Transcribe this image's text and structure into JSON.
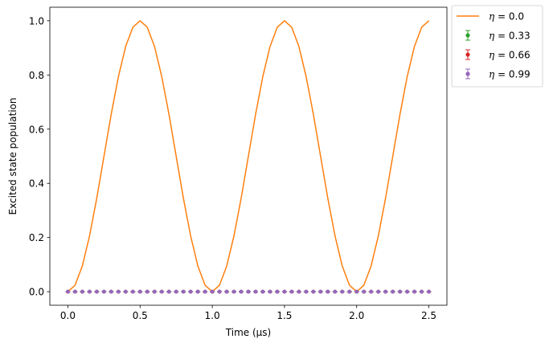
{
  "chart_data": {
    "type": "line",
    "title": "",
    "xlabel": "Time (μs)",
    "ylabel": "Excited state population",
    "xlim": [
      -0.125,
      2.625
    ],
    "ylim": [
      -0.05,
      1.05
    ],
    "xticks": [
      0.0,
      0.5,
      1.0,
      1.5,
      2.0,
      2.5
    ],
    "xtick_labels": [
      "0.0",
      "0.5",
      "1.0",
      "1.5",
      "2.0",
      "2.5"
    ],
    "yticks": [
      0.0,
      0.2,
      0.4,
      0.6,
      0.8,
      1.0
    ],
    "ytick_labels": [
      "0.0",
      "0.2",
      "0.4",
      "0.6",
      "0.8",
      "1.0"
    ],
    "grid": false,
    "legend_position": "outside-top-right",
    "x": [
      0.0,
      0.05,
      0.1,
      0.15,
      0.2,
      0.25,
      0.3,
      0.35,
      0.4,
      0.45,
      0.5,
      0.55,
      0.6,
      0.65,
      0.7,
      0.75,
      0.8,
      0.85,
      0.9,
      0.95,
      1.0,
      1.05,
      1.1,
      1.15,
      1.2,
      1.25,
      1.3,
      1.35,
      1.4,
      1.45,
      1.5,
      1.55,
      1.6,
      1.65,
      1.7,
      1.75,
      1.8,
      1.85,
      1.9,
      1.95,
      2.0,
      2.05,
      2.1,
      2.15,
      2.2,
      2.25,
      2.3,
      2.35,
      2.4,
      2.45,
      2.5
    ],
    "series": [
      {
        "name": "η = 0.0",
        "label_prefix": "η",
        "label_value": "= 0.0",
        "kind": "line",
        "color": "#ff7f0e",
        "values": [
          0.0,
          0.024,
          0.095,
          0.206,
          0.345,
          0.5,
          0.655,
          0.794,
          0.905,
          0.976,
          1.0,
          0.976,
          0.905,
          0.794,
          0.655,
          0.5,
          0.345,
          0.206,
          0.095,
          0.024,
          0.0,
          0.024,
          0.095,
          0.206,
          0.345,
          0.5,
          0.655,
          0.794,
          0.905,
          0.976,
          1.0,
          0.976,
          0.905,
          0.794,
          0.655,
          0.5,
          0.345,
          0.206,
          0.095,
          0.024,
          0.0,
          0.024,
          0.095,
          0.206,
          0.345,
          0.5,
          0.655,
          0.794,
          0.905,
          0.976,
          1.0
        ]
      },
      {
        "name": "η = 0.33",
        "label_prefix": "η",
        "label_value": "= 0.33",
        "kind": "errorbar",
        "color": "#2ca02c",
        "values": [
          0.0,
          0.0,
          0.0,
          0.0,
          0.0,
          0.0,
          0.0,
          0.0,
          0.0,
          0.0,
          0.0,
          0.0,
          0.0,
          0.0,
          0.0,
          0.0,
          0.0,
          0.0,
          0.0,
          0.0,
          0.0,
          0.0,
          0.0,
          0.0,
          0.0,
          0.0,
          0.0,
          0.0,
          0.0,
          0.0,
          0.0,
          0.0,
          0.0,
          0.0,
          0.0,
          0.0,
          0.0,
          0.0,
          0.0,
          0.0,
          0.0,
          0.0,
          0.0,
          0.0,
          0.0,
          0.0,
          0.0,
          0.0,
          0.0,
          0.0,
          0.0
        ]
      },
      {
        "name": "η = 0.66",
        "label_prefix": "η",
        "label_value": "= 0.66",
        "kind": "errorbar",
        "color": "#d62728",
        "values": [
          0.0,
          0.0,
          0.0,
          0.0,
          0.0,
          0.0,
          0.0,
          0.0,
          0.0,
          0.0,
          0.0,
          0.0,
          0.0,
          0.0,
          0.0,
          0.0,
          0.0,
          0.0,
          0.0,
          0.0,
          0.0,
          0.0,
          0.0,
          0.0,
          0.0,
          0.0,
          0.0,
          0.0,
          0.0,
          0.0,
          0.0,
          0.0,
          0.0,
          0.0,
          0.0,
          0.0,
          0.0,
          0.0,
          0.0,
          0.0,
          0.0,
          0.0,
          0.0,
          0.0,
          0.0,
          0.0,
          0.0,
          0.0,
          0.0,
          0.0,
          0.0
        ]
      },
      {
        "name": "η = 0.99",
        "label_prefix": "η",
        "label_value": "= 0.99",
        "kind": "errorbar",
        "color": "#9467bd",
        "values": [
          0.0,
          0.0,
          0.0,
          0.0,
          0.0,
          0.0,
          0.0,
          0.0,
          0.0,
          0.0,
          0.0,
          0.0,
          0.0,
          0.0,
          0.0,
          0.0,
          0.0,
          0.0,
          0.0,
          0.0,
          0.0,
          0.0,
          0.0,
          0.0,
          0.0,
          0.0,
          0.0,
          0.0,
          0.0,
          0.0,
          0.0,
          0.0,
          0.0,
          0.0,
          0.0,
          0.0,
          0.0,
          0.0,
          0.0,
          0.0,
          0.0,
          0.0,
          0.0,
          0.0,
          0.0,
          0.0,
          0.0,
          0.0,
          0.0,
          0.0,
          0.0
        ]
      }
    ]
  }
}
